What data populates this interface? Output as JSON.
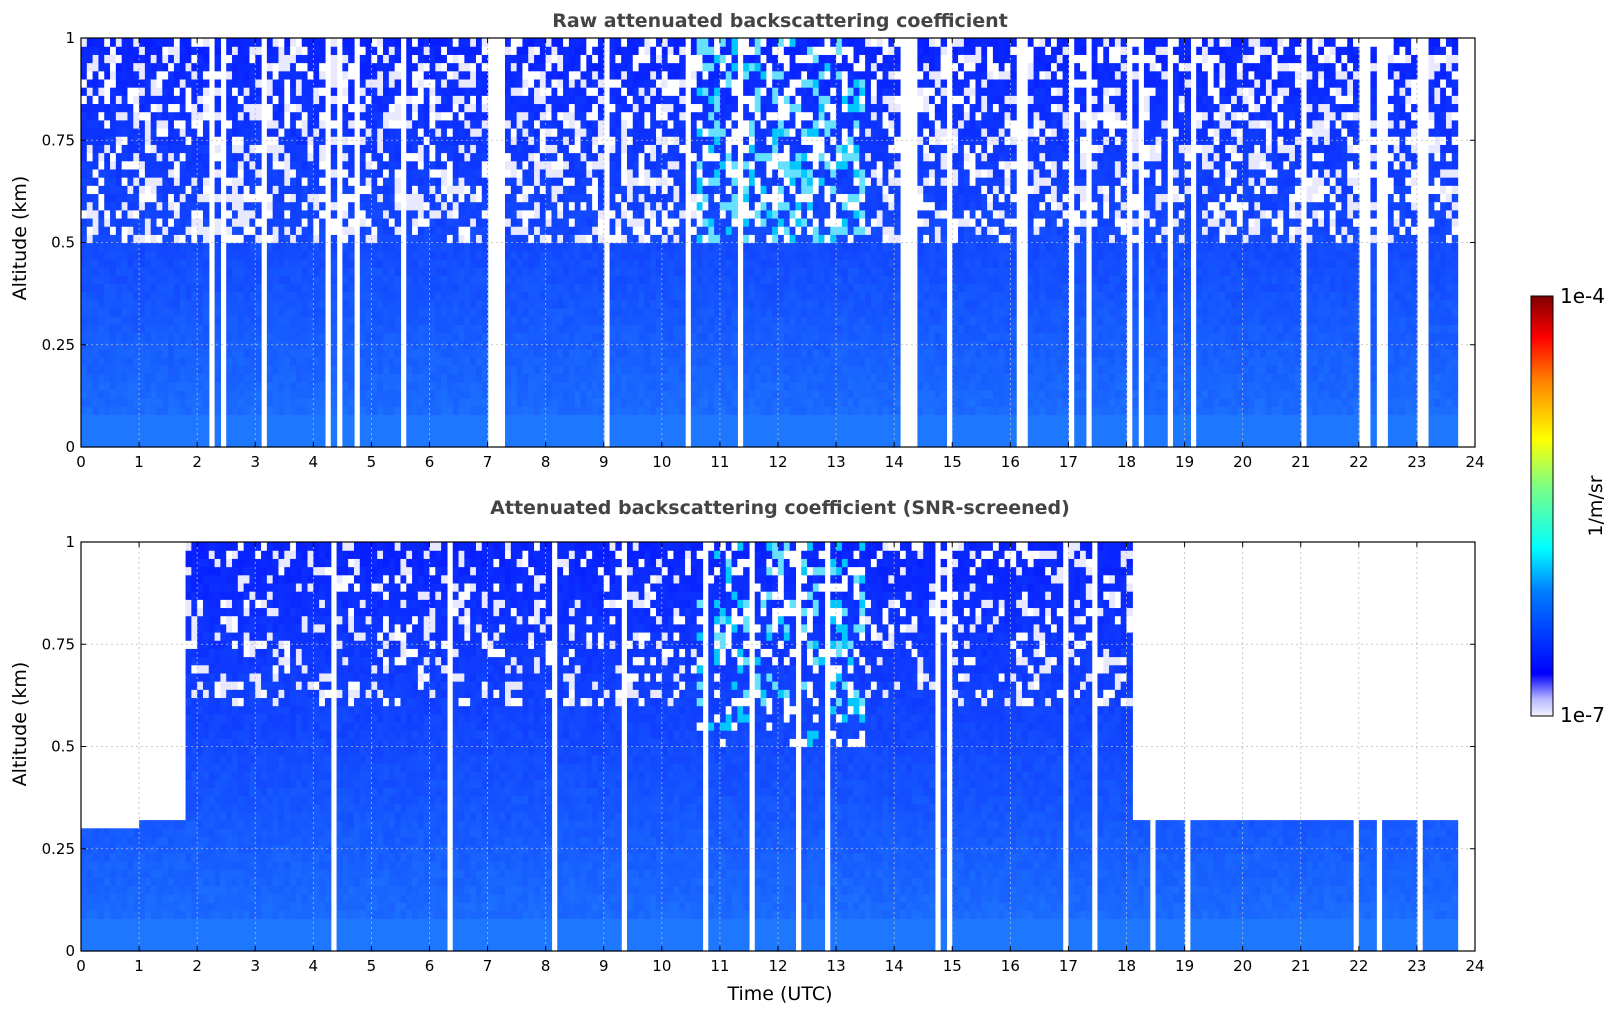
{
  "chart_data": [
    {
      "type": "heatmap",
      "title": "Raw attenuated backscattering coefficient",
      "xlabel": "",
      "ylabel": "Altitude (km)",
      "xlim": [
        0,
        24
      ],
      "ylim": [
        0,
        1
      ],
      "x_ticks": [
        "0",
        "1",
        "2",
        "3",
        "4",
        "5",
        "6",
        "7",
        "8",
        "9",
        "10",
        "11",
        "12",
        "13",
        "14",
        "15",
        "16",
        "17",
        "18",
        "19",
        "20",
        "21",
        "22",
        "23",
        "24"
      ],
      "y_ticks": [
        "0",
        "0.25",
        "0.5",
        "0.75",
        "1"
      ],
      "grid": true,
      "description_of_values": "Backscatter mostly ~1e-7 to 1e-6 (blue), noisier above 0.5 km, lighter cyan noise 11-13 UTC, many data gaps (white columns).",
      "gaps_utc": [
        [
          7.05,
          7.3
        ],
        [
          9.0,
          9.1
        ],
        [
          16.2,
          16.3
        ],
        [
          22.0,
          22.2
        ],
        [
          22.35,
          22.55
        ],
        [
          23.05,
          23.2
        ],
        [
          23.8,
          24.0
        ]
      ],
      "noise_cutoff_km": 0.5
    },
    {
      "type": "heatmap",
      "title": "Attenuated backscattering coefficient (SNR-screened)",
      "xlabel": "Time (UTC)",
      "ylabel": "Altitude (km)",
      "xlim": [
        0,
        24
      ],
      "ylim": [
        0,
        1
      ],
      "x_ticks": [
        "0",
        "1",
        "2",
        "3",
        "4",
        "5",
        "6",
        "7",
        "8",
        "9",
        "10",
        "11",
        "12",
        "13",
        "14",
        "15",
        "16",
        "17",
        "18",
        "19",
        "20",
        "21",
        "22",
        "23",
        "24"
      ],
      "y_ticks": [
        "0",
        "0.25",
        "0.5",
        "0.75",
        "1"
      ],
      "grid": true,
      "screened_top_km": [
        {
          "x": [
            0.0,
            0.5
          ],
          "top": 0.295
        },
        {
          "x": [
            0.5,
            1.0
          ],
          "top": 0.3
        },
        {
          "x": [
            1.0,
            1.8
          ],
          "top": 0.31
        },
        {
          "x": [
            1.8,
            18.1
          ],
          "top": 1.0
        },
        {
          "x": [
            18.1,
            18.8
          ],
          "top": 0.31
        },
        {
          "x": [
            18.8,
            20.5
          ],
          "top": 0.305
        },
        {
          "x": [
            20.5,
            21.7
          ],
          "top": 0.31
        },
        {
          "x": [
            21.7,
            22.6
          ],
          "top": 0.305
        },
        {
          "x": [
            22.6,
            23.3
          ],
          "top": 0.32
        },
        {
          "x": [
            23.3,
            23.8
          ],
          "top": 0.305
        }
      ],
      "gaps_utc": [
        [
          21.95,
          22.05
        ],
        [
          22.3,
          22.38
        ],
        [
          23.05,
          23.12
        ],
        [
          23.8,
          24.0
        ]
      ]
    }
  ],
  "colorbar": {
    "label": "1/m/sr",
    "max_label": "1e-4",
    "min_label": "1e-7",
    "colors": [
      "#f2f2ff",
      "#b8b8ff",
      "#0000ff",
      "#0080ff",
      "#00ffff",
      "#80ff80",
      "#ffff00",
      "#ff8000",
      "#ff0000",
      "#800000"
    ]
  }
}
